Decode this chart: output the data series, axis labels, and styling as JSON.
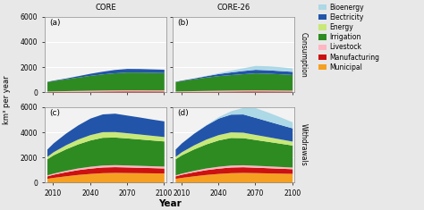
{
  "years": [
    2005,
    2010,
    2020,
    2030,
    2040,
    2050,
    2060,
    2070,
    2080,
    2090,
    2100
  ],
  "col_labels": [
    "CORE",
    "CORE-26"
  ],
  "row_labels": [
    "Consumption",
    "Withdrawals"
  ],
  "panel_labels": [
    "(a)",
    "(b)",
    "(c)",
    "(d)"
  ],
  "ylim": [
    0,
    6000
  ],
  "yticks": [
    0,
    2000,
    4000,
    6000
  ],
  "xlabel": "Year",
  "ylabel": "km³ per year",
  "colors": {
    "Bioenergy": "#add8e6",
    "Electricity": "#2255aa",
    "Energy": "#c8e878",
    "Irrigation": "#2e8b22",
    "Livestock": "#ffb6c1",
    "Manufacturing": "#cc1111",
    "Municipal": "#f5a020"
  },
  "legend_order": [
    "Bioenergy",
    "Electricity",
    "Energy",
    "Irrigation",
    "Livestock",
    "Manufacturing",
    "Municipal"
  ],
  "stack_order": [
    "Municipal",
    "Manufacturing",
    "Livestock",
    "Irrigation",
    "Energy",
    "Electricity",
    "Bioenergy"
  ],
  "panels": {
    "a": {
      "Bioenergy": [
        0,
        0,
        0,
        0,
        0,
        0,
        0,
        0,
        0,
        0,
        0
      ],
      "Electricity": [
        20,
        35,
        60,
        110,
        165,
        215,
        265,
        290,
        285,
        275,
        265
      ],
      "Energy": [
        0,
        0,
        0,
        0,
        0,
        0,
        0,
        0,
        0,
        0,
        0
      ],
      "Irrigation": [
        750,
        820,
        940,
        1060,
        1180,
        1280,
        1360,
        1410,
        1410,
        1395,
        1380
      ],
      "Livestock": [
        50,
        55,
        63,
        70,
        76,
        81,
        84,
        86,
        85,
        83,
        82
      ],
      "Manufacturing": [
        55,
        62,
        72,
        83,
        93,
        103,
        110,
        114,
        113,
        111,
        109
      ],
      "Municipal": [
        0,
        0,
        0,
        0,
        0,
        0,
        0,
        0,
        0,
        0,
        0
      ]
    },
    "b": {
      "Bioenergy": [
        0,
        0,
        0,
        25,
        70,
        140,
        220,
        310,
        320,
        305,
        275
      ],
      "Electricity": [
        20,
        35,
        60,
        110,
        165,
        210,
        255,
        285,
        272,
        258,
        248
      ],
      "Energy": [
        0,
        0,
        0,
        0,
        0,
        0,
        0,
        0,
        0,
        0,
        0
      ],
      "Irrigation": [
        750,
        820,
        940,
        1060,
        1160,
        1230,
        1290,
        1350,
        1330,
        1290,
        1245
      ],
      "Livestock": [
        50,
        55,
        63,
        70,
        76,
        79,
        80,
        81,
        79,
        76,
        73
      ],
      "Manufacturing": [
        55,
        62,
        72,
        83,
        92,
        101,
        109,
        113,
        110,
        106,
        101
      ],
      "Municipal": [
        0,
        0,
        0,
        0,
        0,
        0,
        0,
        0,
        0,
        0,
        0
      ]
    },
    "c": {
      "Bioenergy": [
        0,
        0,
        0,
        0,
        0,
        0,
        0,
        0,
        0,
        0,
        0
      ],
      "Electricity": [
        580,
        700,
        920,
        1120,
        1310,
        1410,
        1460,
        1400,
        1350,
        1290,
        1240
      ],
      "Energy": [
        190,
        245,
        325,
        385,
        425,
        445,
        435,
        412,
        392,
        372,
        352
      ],
      "Irrigation": [
        1280,
        1450,
        1700,
        1910,
        2090,
        2200,
        2190,
        2145,
        2095,
        2045,
        1995
      ],
      "Livestock": [
        78,
        90,
        112,
        132,
        147,
        157,
        161,
        158,
        154,
        150,
        147
      ],
      "Manufacturing": [
        195,
        248,
        322,
        382,
        422,
        452,
        456,
        446,
        430,
        414,
        399
      ],
      "Municipal": [
        345,
        420,
        542,
        652,
        732,
        792,
        812,
        801,
        791,
        779,
        768
      ]
    },
    "d": {
      "Bioenergy": [
        0,
        0,
        0,
        35,
        110,
        265,
        520,
        770,
        710,
        605,
        482
      ],
      "Electricity": [
        580,
        700,
        920,
        1120,
        1310,
        1410,
        1450,
        1355,
        1248,
        1148,
        1048
      ],
      "Energy": [
        190,
        245,
        325,
        385,
        425,
        442,
        432,
        402,
        372,
        342,
        312
      ],
      "Irrigation": [
        1280,
        1450,
        1700,
        1910,
        2090,
        2190,
        2150,
        2045,
        1948,
        1848,
        1748
      ],
      "Livestock": [
        78,
        90,
        112,
        132,
        147,
        156,
        158,
        152,
        145,
        138,
        131
      ],
      "Manufacturing": [
        195,
        248,
        322,
        382,
        422,
        451,
        451,
        431,
        411,
        391,
        371
      ],
      "Municipal": [
        345,
        420,
        542,
        652,
        732,
        791,
        811,
        796,
        776,
        756,
        736
      ]
    }
  },
  "bg_color": "#f2f2f2",
  "grid_color": "#ffffff",
  "strip_bg": "#cccccc",
  "fig_bg": "#e8e8e8"
}
